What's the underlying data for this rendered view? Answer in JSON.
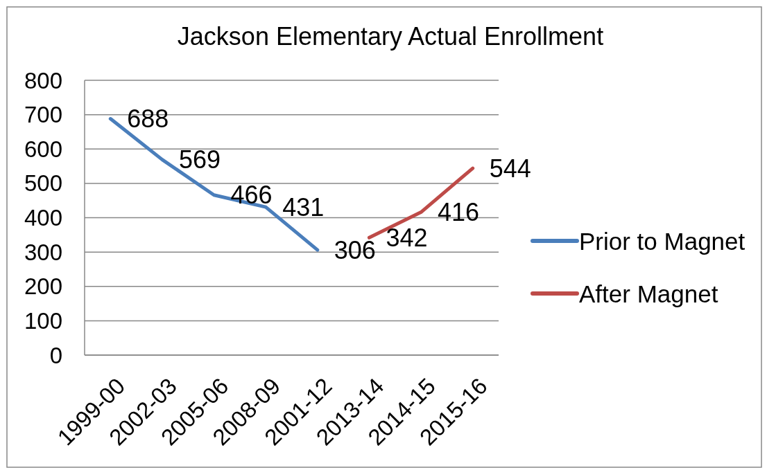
{
  "chart_data": {
    "type": "line",
    "title": "Jackson Elementary Actual Enrollment",
    "categories": [
      "1999-00",
      "2002-03",
      "2005-06",
      "2008-09",
      "2001-12",
      "2013-14",
      "2014-15",
      "2015-16"
    ],
    "series": [
      {
        "name": "Prior to Magnet",
        "color": "#4a7ebb",
        "values": [
          688,
          569,
          466,
          431,
          306,
          null,
          null,
          null
        ]
      },
      {
        "name": "After Magnet",
        "color": "#be4b48",
        "values": [
          null,
          null,
          null,
          null,
          null,
          342,
          416,
          544
        ]
      }
    ],
    "ylim": [
      0,
      800
    ],
    "yticks": [
      0,
      100,
      200,
      300,
      400,
      500,
      600,
      700,
      800
    ],
    "grid": "y",
    "legend": "right",
    "data_labels": true
  }
}
